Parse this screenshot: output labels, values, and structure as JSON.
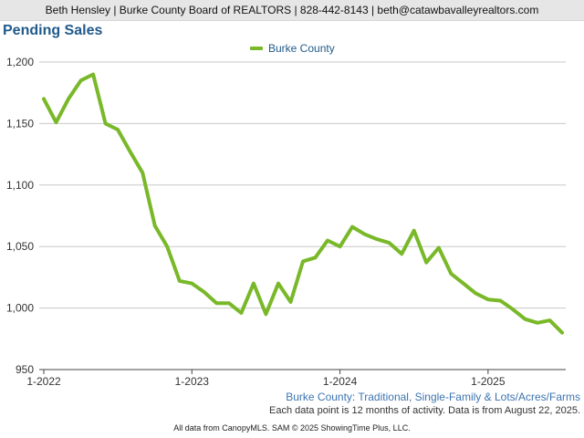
{
  "header": {
    "contact_line": "Beth Hensley | Burke County Board of REALTORS | 828-442-8143 | beth@catawbavalleyrealtors.com"
  },
  "colors": {
    "series": "#79b829",
    "title": "#215a8a",
    "note": "#3d74b0",
    "grid": "#c8c8c8"
  },
  "chart_data": {
    "type": "line",
    "title": "Pending Sales",
    "legend_position": "top-center",
    "grid": true,
    "ylim": [
      950,
      1200
    ],
    "yticks": [
      950,
      1000,
      1050,
      1100,
      1150,
      1200
    ],
    "ytick_labels": [
      "950",
      "1,000",
      "1,050",
      "1,100",
      "1,150",
      "1,200"
    ],
    "xtick_labels": [
      "1-2022",
      "1-2023",
      "1-2024",
      "1-2025"
    ],
    "x": [
      "1-2022",
      "2-2022",
      "3-2022",
      "4-2022",
      "5-2022",
      "6-2022",
      "7-2022",
      "8-2022",
      "9-2022",
      "10-2022",
      "11-2022",
      "12-2022",
      "1-2023",
      "2-2023",
      "3-2023",
      "4-2023",
      "5-2023",
      "6-2023",
      "7-2023",
      "8-2023",
      "9-2023",
      "10-2023",
      "11-2023",
      "12-2023",
      "1-2024",
      "2-2024",
      "3-2024",
      "4-2024",
      "5-2024",
      "6-2024",
      "7-2024",
      "8-2024",
      "9-2024",
      "10-2024",
      "11-2024",
      "12-2024",
      "1-2025",
      "2-2025",
      "3-2025",
      "4-2025",
      "5-2025",
      "6-2025",
      "7-2025"
    ],
    "series": [
      {
        "name": "Burke County",
        "values": [
          1170,
          1151,
          1170,
          1185,
          1190,
          1150,
          1145,
          1127,
          1110,
          1067,
          1050,
          1022,
          1020,
          1013,
          1004,
          1004,
          996,
          1020,
          995,
          1020,
          1005,
          1038,
          1041,
          1055,
          1050,
          1066,
          1060,
          1056,
          1053,
          1044,
          1063,
          1037,
          1049,
          1028,
          1020,
          1012,
          1007,
          1006,
          999,
          991,
          988,
          990,
          980
        ]
      }
    ]
  },
  "notes": {
    "filter": "Burke County: Traditional, Single-Family & Lots/Acres/Farms",
    "data_note": "Each data point is 12 months of activity. Data is from August 22, 2025."
  },
  "footer": {
    "text": "All data from CanopyMLS. SAM © 2025 ShowingTime Plus, LLC."
  }
}
